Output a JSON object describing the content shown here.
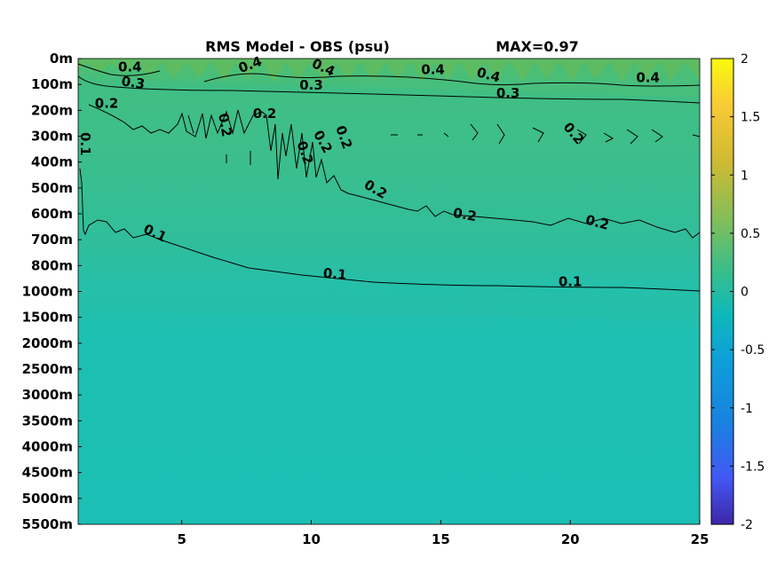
{
  "chart_data": {
    "type": "heatmap",
    "title_left": "RMS Model - OBS (psu)",
    "title_right": "MAX=0.97",
    "x_ticks": [
      5,
      10,
      15,
      20,
      25
    ],
    "xlim": [
      1,
      25
    ],
    "y_ticks": [
      "0m",
      "100m",
      "200m",
      "300m",
      "400m",
      "500m",
      "600m",
      "700m",
      "800m",
      "1000m",
      "1500m",
      "2000m",
      "2500m",
      "3000m",
      "3500m",
      "4000m",
      "4500m",
      "5000m",
      "5500m"
    ],
    "colorbar": {
      "range": [
        -2,
        2
      ],
      "ticks": [
        2,
        1.5,
        1,
        0.5,
        0,
        -0.5,
        -1,
        -1.5,
        -2
      ],
      "colormap": "parula"
    },
    "contour_levels": [
      0.1,
      0.2,
      0.3,
      0.4
    ],
    "contour_labels": [
      {
        "text": "0.4",
        "x": 3.0,
        "depth": "~50m"
      },
      {
        "text": "0.3",
        "x": 3.1,
        "depth": "~110m"
      },
      {
        "text": "0.2",
        "x": 2.1,
        "depth": "~190m"
      },
      {
        "text": "0.1",
        "x": 1.1,
        "depth": "~330m"
      },
      {
        "text": "0.4",
        "x": 7.7,
        "depth": "~40m"
      },
      {
        "text": "0.2",
        "x": 6.5,
        "depth": "~260m"
      },
      {
        "text": "0.2",
        "x": 8.2,
        "depth": "~230m"
      },
      {
        "text": "0.4",
        "x": 10.4,
        "depth": "~50m"
      },
      {
        "text": "0.3",
        "x": 10.0,
        "depth": "~120m"
      },
      {
        "text": "0.2",
        "x": 9.6,
        "depth": "~370m"
      },
      {
        "text": "0.2",
        "x": 10.3,
        "depth": "~330m"
      },
      {
        "text": "0.2",
        "x": 11.1,
        "depth": "~310m"
      },
      {
        "text": "0.2",
        "x": 12.4,
        "depth": "~520m"
      },
      {
        "text": "0.4",
        "x": 14.7,
        "depth": "~60m"
      },
      {
        "text": "0.4",
        "x": 16.8,
        "depth": "~80m"
      },
      {
        "text": "0.3",
        "x": 17.6,
        "depth": "~150m"
      },
      {
        "text": "0.2",
        "x": 20.0,
        "depth": "~300m"
      },
      {
        "text": "0.2",
        "x": 15.9,
        "depth": "~620m"
      },
      {
        "text": "0.2",
        "x": 21.0,
        "depth": "~650m"
      },
      {
        "text": "0.4",
        "x": 23.0,
        "depth": "~90m"
      },
      {
        "text": "0.1",
        "x": 3.9,
        "depth": "~720m"
      },
      {
        "text": "0.1",
        "x": 10.9,
        "depth": "~900m"
      },
      {
        "text": "0.1",
        "x": 20.0,
        "depth": "~970m"
      }
    ]
  },
  "colors": {
    "surface_band": "#4fbd73",
    "upper": "#3cbe8c",
    "mid": "#2ebe9e",
    "deep": "#1cbfb2",
    "contour": "#000000"
  }
}
